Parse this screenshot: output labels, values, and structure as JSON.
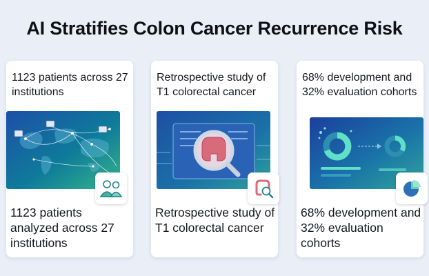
{
  "title": "AI Stratifies Colon Cancer Recurrence Risk",
  "cards": [
    {
      "top_text": "1123 patients across 27 institutions",
      "bottom_text": "1123 patients analyzed across 27 institutions",
      "illustration": "world-network-map",
      "badge_icon": "people-icon"
    },
    {
      "top_text": "Retrospective study of T1 colorectal cancer",
      "bottom_text": "Retrospective study of T1 colorectal cancer",
      "illustration": "colon-magnifier-scan",
      "badge_icon": "colon-search-icon"
    },
    {
      "top_text": "68% development and 32% evaluation cohorts",
      "bottom_text": "68% development and 32% evaluation cohorts",
      "illustration": "cohort-split-donuts",
      "badge_icon": "pie-chart-icon"
    }
  ]
}
